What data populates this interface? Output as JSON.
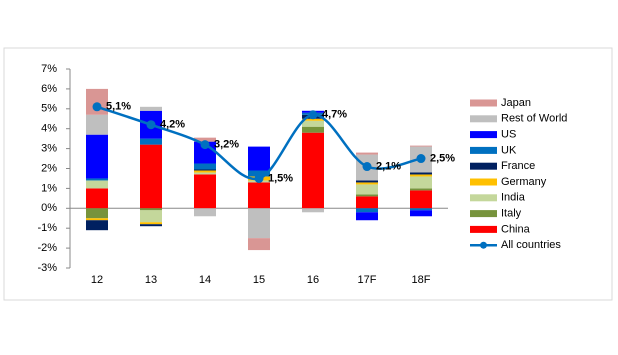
{
  "chart_data": {
    "type": "stacked-bar-line",
    "categories": [
      "12",
      "13",
      "14",
      "15",
      "16",
      "17F",
      "18F"
    ],
    "ylim": [
      -3,
      7
    ],
    "yticks": [
      {
        "value": -3,
        "label": "-3%"
      },
      {
        "value": -2,
        "label": "-2%"
      },
      {
        "value": -1,
        "label": "-1%"
      },
      {
        "value": 0,
        "label": "0%"
      },
      {
        "value": 1,
        "label": "1%"
      },
      {
        "value": 2,
        "label": "2%"
      },
      {
        "value": 3,
        "label": "3%"
      },
      {
        "value": 4,
        "label": "4%"
      },
      {
        "value": 5,
        "label": "5%"
      },
      {
        "value": 6,
        "label": "6%"
      },
      {
        "value": 7,
        "label": "7%"
      }
    ],
    "legend": "right",
    "series": [
      {
        "name": "Japan",
        "color": "#d99694",
        "values": [
          1.3,
          0,
          0.2,
          -0.6,
          0,
          0.1,
          0.05
        ]
      },
      {
        "name": "Rest of World",
        "color": "#bfbfbf",
        "values": [
          1.0,
          0.2,
          -0.4,
          -1.5,
          -0.2,
          1.3,
          1.3
        ]
      },
      {
        "name": "US",
        "color": "#0000ff",
        "values": [
          2.2,
          1.4,
          1.1,
          1.2,
          0.1,
          -0.4,
          -0.3
        ]
      },
      {
        "name": "UK",
        "color": "#0070c0",
        "values": [
          0.1,
          0.3,
          0.3,
          0.3,
          0.1,
          -0.2,
          -0.1
        ]
      },
      {
        "name": "France",
        "color": "#002060",
        "values": [
          -0.5,
          -0.1,
          0.05,
          0,
          0.2,
          0.1,
          0.1
        ]
      },
      {
        "name": "Germany",
        "color": "#ffc000",
        "values": [
          -0.1,
          -0.1,
          0.1,
          0.2,
          0.1,
          0.1,
          0.1
        ]
      },
      {
        "name": "India",
        "color": "#c4d79b",
        "values": [
          0.4,
          -0.6,
          0.1,
          0.1,
          0.3,
          0.5,
          0.6
        ]
      },
      {
        "name": "Italy",
        "color": "#77933c",
        "values": [
          -0.5,
          -0.1,
          0,
          0,
          0.3,
          0.1,
          0.1
        ]
      },
      {
        "name": "China",
        "color": "#ff0000",
        "values": [
          1.0,
          3.2,
          1.7,
          1.3,
          3.8,
          0.6,
          0.9
        ]
      },
      {
        "name": "All countries",
        "color": "#0070c0",
        "type": "line",
        "values": [
          5.1,
          4.2,
          3.2,
          1.5,
          4.7,
          2.1,
          2.5
        ],
        "value_labels": [
          "5,1%",
          "4,2%",
          "3,2%",
          "1,5%",
          "4,7%",
          "2,1%",
          "2,5%"
        ]
      }
    ]
  }
}
